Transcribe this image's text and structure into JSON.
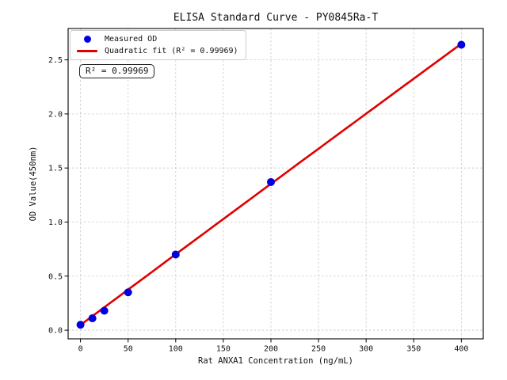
{
  "chart_data": {
    "type": "scatter",
    "title": "ELISA Standard Curve - PY0845Ra-T",
    "xlabel": "Rat ANXA1 Concentration (ng/mL)",
    "ylabel": "OD Value(450nm)",
    "xlim": [
      -13,
      423
    ],
    "ylim": [
      -0.08,
      2.79
    ],
    "x_ticks": [
      0,
      50,
      100,
      150,
      200,
      250,
      300,
      350,
      400
    ],
    "y_ticks": [
      0.0,
      0.5,
      1.0,
      1.5,
      2.0,
      2.5
    ],
    "grid": true,
    "legend_position": "upper left",
    "series": [
      {
        "name": "Measured OD",
        "type": "scatter",
        "color": "#0000e0",
        "x": [
          0,
          12.5,
          25,
          50,
          100,
          200,
          400
        ],
        "y": [
          0.05,
          0.11,
          0.18,
          0.35,
          0.7,
          1.37,
          2.64
        ]
      },
      {
        "name": "Quadratic fit (R² = 0.99969)",
        "type": "line",
        "color": "#e00000",
        "x_range": [
          0,
          400
        ],
        "fit": {
          "a": 0.048,
          "b": 0.00655,
          "c": -1.2e-07
        },
        "r_squared": 0.99969
      }
    ],
    "annotation": "R² = 0.99969",
    "colors": {
      "grid": "#c9c9c9",
      "spine": "#000000",
      "background": "#ffffff"
    }
  }
}
